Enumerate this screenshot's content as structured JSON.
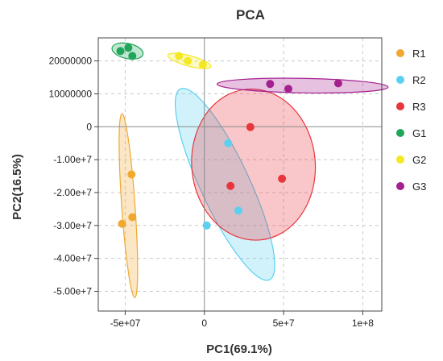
{
  "chart_data": {
    "type": "scatter",
    "title": "PCA",
    "xlabel": "PC1(69.1%)",
    "ylabel": "PC2(16.5%)",
    "xlim": [
      -67000000,
      112000000
    ],
    "ylim": [
      -56000000,
      27000000
    ],
    "x_ticks": [
      {
        "value": -50000000,
        "label": "-5e+07"
      },
      {
        "value": 0,
        "label": "0"
      },
      {
        "value": 50000000,
        "label": "5e+7"
      },
      {
        "value": 100000000,
        "label": "1e+8"
      }
    ],
    "y_ticks": [
      {
        "value": 20000000,
        "label": "20000000"
      },
      {
        "value": 10000000,
        "label": "10000000"
      },
      {
        "value": 0,
        "label": "0"
      },
      {
        "value": -10000000,
        "label": "-1.00e+7"
      },
      {
        "value": -20000000,
        "label": "-2.00e+7"
      },
      {
        "value": -30000000,
        "label": "-3.00e+7"
      },
      {
        "value": -40000000,
        "label": "-4.00e+7"
      },
      {
        "value": -50000000,
        "label": "-5.00e+7"
      }
    ],
    "grid": true,
    "legend_position": "right",
    "series": [
      {
        "name": "R1",
        "color": "#f0a830",
        "points": [
          [
            -46000000,
            -14500000
          ],
          [
            -45500000,
            -27500000
          ],
          [
            -52000000,
            -29500000
          ]
        ],
        "ellipse": {
          "cx": -48000000,
          "cy": -24000000,
          "rx": 4200000,
          "ry": 28000000,
          "angle": 4
        }
      },
      {
        "name": "R2",
        "color": "#5bd0f0",
        "points": [
          [
            15000000,
            -5000000
          ],
          [
            21500000,
            -25500000
          ],
          [
            1500000,
            -30000000
          ]
        ],
        "ellipse": {
          "cx": 13000000,
          "cy": -17500000,
          "rx": 15500000,
          "ry": 32000000,
          "angle": 25
        }
      },
      {
        "name": "R3",
        "color": "#e8363c",
        "points": [
          [
            29000000,
            -100000
          ],
          [
            16500000,
            -18000000
          ],
          [
            49000000,
            -15800000
          ]
        ],
        "ellipse": {
          "cx": 31000000,
          "cy": -11500000,
          "rx": 39000000,
          "ry": 23000000,
          "angle": 5
        }
      },
      {
        "name": "G1",
        "color": "#1fa65a",
        "points": [
          [
            -53000000,
            23000000
          ],
          [
            -48000000,
            24000000
          ],
          [
            -45500000,
            21500000
          ]
        ],
        "ellipse": {
          "cx": -48500000,
          "cy": 23000000,
          "rx": 10000000,
          "ry": 2300000,
          "angle": -12
        }
      },
      {
        "name": "G2",
        "color": "#f5e820",
        "points": [
          [
            -16000000,
            21500000
          ],
          [
            -10500000,
            20000000
          ],
          [
            -1000000,
            18800000
          ]
        ],
        "ellipse": {
          "cx": -9500000,
          "cy": 20000000,
          "rx": 14000000,
          "ry": 1600000,
          "angle": -15
        }
      },
      {
        "name": "G3",
        "color": "#a5208f",
        "points": [
          [
            41500000,
            13000000
          ],
          [
            53000000,
            11500000
          ],
          [
            84500000,
            13200000
          ]
        ],
        "ellipse": {
          "cx": 62000000,
          "cy": 12500000,
          "rx": 54000000,
          "ry": 2200000,
          "angle": -1
        }
      }
    ]
  }
}
